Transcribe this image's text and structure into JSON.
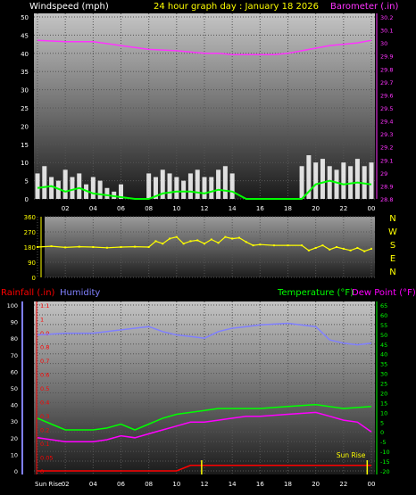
{
  "header": {
    "wind_title": "Windspeed (mph)",
    "date_title": "24 hour graph day : January 18 2026",
    "baro_title": "Barometer (.in)"
  },
  "colors": {
    "wind_gust": "#ffffff",
    "wind_avg": "#00ff00",
    "barometer": "#ff33ff",
    "direction": "#ffff00",
    "humidity": "#8080ff",
    "temperature": "#00ff00",
    "dewpoint": "#ff00ff",
    "rainfall": "#ff0000",
    "sun": "#ffff00"
  },
  "x_hours": [
    "02",
    "04",
    "06",
    "08",
    "10",
    "12",
    "14",
    "16",
    "18",
    "20",
    "22",
    "00"
  ],
  "chart_data": [
    {
      "type": "line",
      "panel": "wind",
      "x_unit": "hours ago",
      "ylim_left": [
        0,
        50
      ],
      "left_ticks": [
        "0",
        "5",
        "10",
        "15",
        "20",
        "25",
        "30",
        "35",
        "40",
        "45",
        "50"
      ],
      "ylim_right": [
        28.8,
        30.2
      ],
      "right_ticks": [
        "28.8",
        "28.9",
        "29",
        "29.1",
        "29.2",
        "29.3",
        "29.4",
        "29.5",
        "29.6",
        "29.7",
        "29.8",
        "29.9",
        "30",
        "30.1",
        "30.2"
      ],
      "series": [
        {
          "axis": "right",
          "x": [
            24,
            22,
            20,
            18,
            16,
            14,
            12,
            11,
            10,
            9,
            8,
            7,
            6,
            5,
            4,
            3,
            2,
            1,
            0
          ],
          "values": [
            30.02,
            30.01,
            30.01,
            29.98,
            29.95,
            29.94,
            29.92,
            29.92,
            29.91,
            29.91,
            29.91,
            29.91,
            29.92,
            29.94,
            29.96,
            29.98,
            29.99,
            30.0,
            30.02
          ]
        },
        {
          "axis": "left",
          "x": [
            24,
            23.5,
            23,
            22.5,
            22,
            21.5,
            21,
            20.5,
            20,
            19.5,
            19,
            18.5,
            18,
            17.5,
            17,
            16.5,
            16,
            15.5,
            15,
            14.5,
            14,
            13.5,
            13,
            12.5,
            12,
            11.5,
            11,
            10.5,
            10,
            9.5,
            9,
            8.5,
            8,
            7.5,
            7,
            6.5,
            6,
            5.5,
            5,
            4.5,
            4,
            3.5,
            3,
            2.5,
            2,
            1.5,
            1,
            0.5,
            0
          ],
          "values": [
            7,
            9,
            6,
            5,
            8,
            6,
            7,
            4,
            6,
            5,
            3,
            2,
            4,
            0,
            0,
            0,
            7,
            6,
            8,
            7,
            6,
            5,
            7,
            8,
            6,
            6,
            8,
            9,
            7,
            0,
            0,
            0,
            0,
            0,
            0,
            0,
            0,
            0,
            9,
            12,
            10,
            11,
            9,
            8,
            10,
            9,
            11,
            9,
            10
          ]
        },
        {
          "axis": "left",
          "x": [
            24,
            23,
            22,
            21,
            20,
            19,
            18,
            17,
            16,
            15,
            14,
            13,
            12,
            11,
            10,
            9,
            8,
            7,
            6,
            5,
            4,
            3,
            2,
            1,
            0
          ],
          "values": [
            3,
            3.5,
            2,
            3,
            1.5,
            1,
            0.5,
            0,
            0,
            1.5,
            2,
            2,
            1.5,
            2.5,
            2,
            0,
            0,
            0,
            0,
            0,
            4,
            5,
            4,
            4.5,
            4
          ]
        }
      ]
    },
    {
      "type": "scatter",
      "panel": "wind-direction",
      "x_unit": "hours ago",
      "ylim": [
        0,
        360
      ],
      "left_ticks": [
        "0",
        "90",
        "180",
        "270",
        "360"
      ],
      "right_labels": [
        "N",
        "W",
        "S",
        "E",
        "N"
      ],
      "series": [
        {
          "x": [
            24,
            23,
            22,
            21,
            20,
            19,
            18,
            17,
            16,
            15.5,
            15,
            14.5,
            14,
            13.5,
            13,
            12.5,
            12,
            11.5,
            11,
            10.5,
            10,
            9.5,
            9,
            8.5,
            8,
            7,
            6,
            5,
            4.5,
            4,
            3.5,
            3,
            2.5,
            2,
            1.5,
            1,
            0.5,
            0
          ],
          "values": [
            180,
            185,
            178,
            182,
            180,
            176,
            180,
            182,
            180,
            215,
            200,
            230,
            240,
            200,
            215,
            220,
            200,
            225,
            205,
            240,
            230,
            235,
            210,
            190,
            195,
            190,
            190,
            190,
            160,
            175,
            190,
            165,
            180,
            170,
            160,
            175,
            155,
            170
          ]
        }
      ]
    },
    {
      "type": "line",
      "panel": "temperature-humidity",
      "x_unit": "hours ago",
      "left1_ticks": [
        "0",
        "10",
        "20",
        "30",
        "40",
        "50",
        "60",
        "70",
        "80",
        "90",
        "100"
      ],
      "left2_ticks": [
        "0",
        "0.05",
        "0.1",
        "0.2",
        "0.3",
        "0.4",
        "0.5",
        "0.6",
        "0.7",
        "0.8",
        "0.9",
        "1",
        "1.1"
      ],
      "right_ticks": [
        "-20",
        "-15",
        "-10",
        "-5",
        "0",
        "5",
        "10",
        "15",
        "20",
        "25",
        "30",
        "35",
        "40",
        "45",
        "50",
        "55",
        "60",
        "65"
      ],
      "ylim_temperature": [
        -20,
        65
      ],
      "ylim_humidity": [
        0,
        100
      ],
      "series": [
        {
          "axis": "humidity",
          "x": [
            24,
            22,
            20,
            18,
            17,
            16,
            15,
            14,
            13,
            12,
            11,
            10,
            9,
            8,
            6,
            4,
            3,
            2,
            1,
            0
          ],
          "values": [
            82,
            83,
            83,
            85,
            86,
            87,
            84,
            82,
            81,
            80,
            84,
            86,
            87,
            88,
            89,
            87,
            79,
            77,
            76,
            77
          ]
        },
        {
          "axis": "temperature",
          "x": [
            24,
            23,
            22,
            21,
            20,
            19,
            18,
            17,
            16,
            15,
            14,
            13,
            12,
            11,
            10,
            9,
            8,
            6,
            4,
            2,
            0
          ],
          "values": [
            7,
            4,
            1,
            1,
            1,
            2,
            4,
            1,
            4,
            7,
            9,
            10,
            11,
            12,
            12,
            12,
            12,
            13,
            14,
            12,
            13
          ]
        },
        {
          "axis": "temperature",
          "x": [
            24,
            23,
            22,
            21,
            20,
            19,
            18,
            17,
            16,
            15,
            14,
            13,
            12,
            11,
            10,
            9,
            8,
            6,
            4,
            3,
            2,
            1,
            0
          ],
          "values": [
            -3,
            -4,
            -5,
            -5,
            -5,
            -4,
            -2,
            -3,
            -1,
            1,
            3,
            5,
            5,
            6,
            7,
            8,
            8,
            9,
            10,
            8,
            6,
            5,
            0
          ]
        },
        {
          "axis": "rainfall",
          "x": [
            24,
            14,
            13,
            0
          ],
          "values": [
            0,
            0,
            0.02,
            0.02
          ]
        }
      ],
      "sun_rise": "Sun Rise",
      "sun_rise_hours_ago": 12.2,
      "sun_rise_tick": "Sun Rise",
      "sun_set_hours_ago": 0.3
    }
  ],
  "bottom_labels": {
    "rainfall": "Rainfall (.in)",
    "humidity": "Humidity",
    "temperature": "Temperature (°F)",
    "dewpoint": "Dew Point (°F)"
  }
}
